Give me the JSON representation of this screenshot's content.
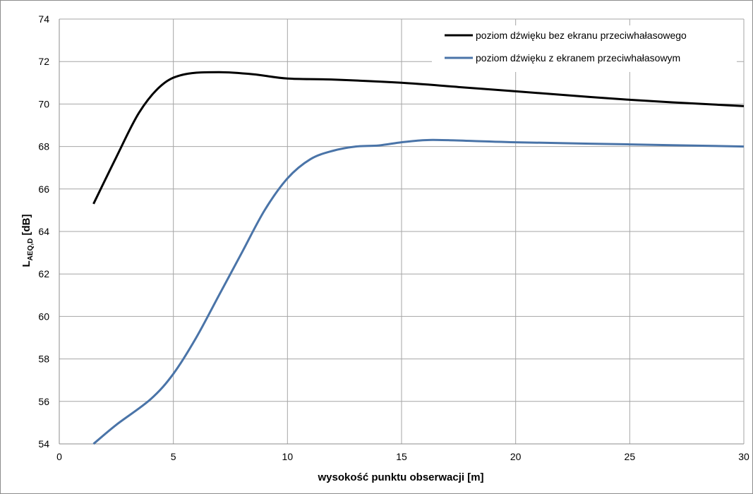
{
  "chart_data": {
    "type": "line",
    "xlabel": "wysokość punktu obserwacji [m]",
    "ylabel": {
      "main": "L",
      "subscript": "AEQ,D",
      "suffix": " [dB]"
    },
    "xlim": [
      0,
      30
    ],
    "ylim": [
      54,
      74
    ],
    "xticks": [
      0,
      5,
      10,
      15,
      20,
      25,
      30
    ],
    "yticks": [
      54,
      56,
      58,
      60,
      62,
      64,
      66,
      68,
      70,
      72,
      74
    ],
    "grid": true,
    "legend_position": "top-right",
    "series": [
      {
        "name": "poziom dźwięku bez ekranu przeciwhałasowego",
        "color": "#000000",
        "x": [
          1.5,
          2.5,
          3.5,
          4.5,
          5.5,
          7,
          8.5,
          10,
          12,
          15,
          17.5,
          20,
          25,
          30
        ],
        "y": [
          65.3,
          67.5,
          69.6,
          70.9,
          71.4,
          71.5,
          71.4,
          71.2,
          71.15,
          71.0,
          70.8,
          70.6,
          70.2,
          69.9
        ]
      },
      {
        "name": "poziom dźwięku z ekranem przeciwhałasowym",
        "color": "#4a74a8",
        "x": [
          1.5,
          2.5,
          4,
          5,
          6,
          7,
          8,
          9,
          10,
          11,
          12,
          13,
          14,
          15,
          16,
          17,
          20,
          25,
          30
        ],
        "y": [
          54.0,
          54.9,
          56.1,
          57.3,
          59.0,
          61.0,
          63.0,
          65.0,
          66.5,
          67.4,
          67.8,
          68.0,
          68.05,
          68.2,
          68.3,
          68.3,
          68.2,
          68.1,
          68.0
        ]
      }
    ]
  }
}
